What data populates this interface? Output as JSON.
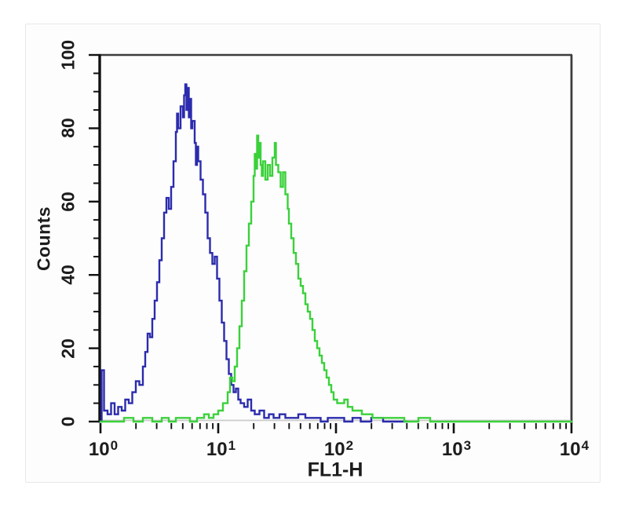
{
  "chart_data": {
    "type": "line",
    "subtype": "flow-cytometry-histogram-overlay",
    "title": "",
    "xlabel": "FL1-H",
    "ylabel": "Counts",
    "x_scale": "log10",
    "xlim": [
      1,
      10000
    ],
    "ylim": [
      0,
      100
    ],
    "grid": false,
    "legend": false,
    "y_tick_values": [
      0,
      20,
      40,
      60,
      80,
      100
    ],
    "y_tick_labels": [
      "0",
      "20",
      "40",
      "60",
      "80",
      "100"
    ],
    "y_minor_step": 5,
    "x_tick_labels": [
      {
        "base": "10",
        "exp": "0"
      },
      {
        "base": "10",
        "exp": "1"
      },
      {
        "base": "10",
        "exp": "2"
      },
      {
        "base": "10",
        "exp": "3"
      },
      {
        "base": "10",
        "exp": "4"
      }
    ],
    "x_decades": [
      0,
      1,
      2,
      3,
      4
    ],
    "x_minor_multipliers": [
      2,
      3,
      4,
      5,
      6,
      7,
      8,
      9
    ],
    "colors": {
      "blue_series": "#2b2bad",
      "green_series": "#3ad13a",
      "zero_line": "#cbcbcb",
      "axis": "#111111",
      "plot_border": "#3d3d3d",
      "text": "#1c1c1c",
      "figure_background": "#fdfdfd",
      "frame_border": "#e8e8e8"
    },
    "series": [
      {
        "name": "blue-histogram",
        "color_key": "blue_series",
        "points": [
          [
            0.0,
            0
          ],
          [
            0.01,
            14
          ],
          [
            0.03,
            3
          ],
          [
            0.06,
            2
          ],
          [
            0.09,
            5
          ],
          [
            0.12,
            2
          ],
          [
            0.15,
            4
          ],
          [
            0.18,
            3
          ],
          [
            0.21,
            6
          ],
          [
            0.24,
            5
          ],
          [
            0.27,
            8
          ],
          [
            0.3,
            11
          ],
          [
            0.33,
            10
          ],
          [
            0.36,
            15
          ],
          [
            0.38,
            19
          ],
          [
            0.4,
            24
          ],
          [
            0.42,
            23
          ],
          [
            0.44,
            28
          ],
          [
            0.46,
            33
          ],
          [
            0.48,
            38
          ],
          [
            0.5,
            44
          ],
          [
            0.52,
            50
          ],
          [
            0.54,
            57
          ],
          [
            0.56,
            61
          ],
          [
            0.58,
            58
          ],
          [
            0.6,
            64
          ],
          [
            0.62,
            71
          ],
          [
            0.64,
            79
          ],
          [
            0.65,
            84
          ],
          [
            0.66,
            80
          ],
          [
            0.68,
            86
          ],
          [
            0.7,
            83
          ],
          [
            0.71,
            89
          ],
          [
            0.72,
            92
          ],
          [
            0.73,
            85
          ],
          [
            0.74,
            91
          ],
          [
            0.75,
            83
          ],
          [
            0.76,
            88
          ],
          [
            0.77,
            80
          ],
          [
            0.78,
            82
          ],
          [
            0.8,
            76
          ],
          [
            0.81,
            70
          ],
          [
            0.82,
            75
          ],
          [
            0.83,
            71
          ],
          [
            0.85,
            66
          ],
          [
            0.87,
            62
          ],
          [
            0.89,
            57
          ],
          [
            0.91,
            50
          ],
          [
            0.93,
            46
          ],
          [
            0.95,
            43
          ],
          [
            0.97,
            45
          ],
          [
            0.99,
            39
          ],
          [
            1.01,
            33
          ],
          [
            1.03,
            27
          ],
          [
            1.05,
            22
          ],
          [
            1.07,
            17
          ],
          [
            1.09,
            13
          ],
          [
            1.11,
            10
          ],
          [
            1.13,
            8
          ],
          [
            1.15,
            9
          ],
          [
            1.17,
            6
          ],
          [
            1.19,
            5
          ],
          [
            1.22,
            4
          ],
          [
            1.25,
            6
          ],
          [
            1.28,
            3
          ],
          [
            1.31,
            2
          ],
          [
            1.35,
            3
          ],
          [
            1.39,
            1
          ],
          [
            1.43,
            2
          ],
          [
            1.47,
            1
          ],
          [
            1.52,
            2
          ],
          [
            1.57,
            1
          ],
          [
            1.62,
            1
          ],
          [
            1.68,
            2
          ],
          [
            1.74,
            1
          ],
          [
            1.8,
            1
          ],
          [
            1.87,
            0
          ],
          [
            1.93,
            1
          ],
          [
            2.0,
            1
          ],
          [
            2.07,
            0
          ],
          [
            2.14,
            1
          ],
          [
            2.21,
            0
          ],
          [
            2.3,
            1
          ],
          [
            2.4,
            0
          ],
          [
            2.6,
            0
          ]
        ]
      },
      {
        "name": "green-histogram",
        "color_key": "green_series",
        "points": [
          [
            0.0,
            0
          ],
          [
            0.1,
            0
          ],
          [
            0.2,
            1
          ],
          [
            0.28,
            0
          ],
          [
            0.36,
            1
          ],
          [
            0.44,
            0
          ],
          [
            0.52,
            1
          ],
          [
            0.58,
            0
          ],
          [
            0.64,
            1
          ],
          [
            0.7,
            1
          ],
          [
            0.76,
            0
          ],
          [
            0.82,
            1
          ],
          [
            0.88,
            2
          ],
          [
            0.92,
            1
          ],
          [
            0.96,
            2
          ],
          [
            1.0,
            3
          ],
          [
            1.04,
            5
          ],
          [
            1.08,
            8
          ],
          [
            1.1,
            12
          ],
          [
            1.12,
            11
          ],
          [
            1.14,
            15
          ],
          [
            1.16,
            20
          ],
          [
            1.18,
            26
          ],
          [
            1.2,
            33
          ],
          [
            1.22,
            41
          ],
          [
            1.24,
            48
          ],
          [
            1.26,
            54
          ],
          [
            1.28,
            60
          ],
          [
            1.3,
            67
          ],
          [
            1.31,
            73
          ],
          [
            1.32,
            69
          ],
          [
            1.33,
            78
          ],
          [
            1.34,
            72
          ],
          [
            1.35,
            76
          ],
          [
            1.36,
            70
          ],
          [
            1.37,
            67
          ],
          [
            1.38,
            71
          ],
          [
            1.4,
            66
          ],
          [
            1.42,
            70
          ],
          [
            1.44,
            67
          ],
          [
            1.46,
            72
          ],
          [
            1.48,
            76
          ],
          [
            1.49,
            70
          ],
          [
            1.51,
            68
          ],
          [
            1.53,
            64
          ],
          [
            1.55,
            68
          ],
          [
            1.57,
            62
          ],
          [
            1.59,
            58
          ],
          [
            1.6,
            54
          ],
          [
            1.62,
            50
          ],
          [
            1.64,
            46
          ],
          [
            1.66,
            43
          ],
          [
            1.68,
            39
          ],
          [
            1.7,
            37
          ],
          [
            1.72,
            35
          ],
          [
            1.74,
            32
          ],
          [
            1.76,
            30
          ],
          [
            1.78,
            28
          ],
          [
            1.8,
            25
          ],
          [
            1.82,
            22
          ],
          [
            1.84,
            20
          ],
          [
            1.86,
            18
          ],
          [
            1.88,
            16
          ],
          [
            1.9,
            14
          ],
          [
            1.92,
            12
          ],
          [
            1.94,
            10
          ],
          [
            1.96,
            8
          ],
          [
            1.98,
            6
          ],
          [
            2.01,
            5
          ],
          [
            2.04,
            5
          ],
          [
            2.07,
            6
          ],
          [
            2.1,
            4
          ],
          [
            2.14,
            3
          ],
          [
            2.18,
            3
          ],
          [
            2.22,
            2
          ],
          [
            2.26,
            2
          ],
          [
            2.31,
            1
          ],
          [
            2.36,
            1
          ],
          [
            2.42,
            1
          ],
          [
            2.5,
            1
          ],
          [
            2.58,
            0
          ],
          [
            2.7,
            1
          ],
          [
            2.8,
            0
          ],
          [
            3.0,
            0
          ],
          [
            3.25,
            0
          ],
          [
            3.5,
            0
          ],
          [
            3.75,
            0
          ],
          [
            4.0,
            0
          ]
        ]
      }
    ]
  }
}
